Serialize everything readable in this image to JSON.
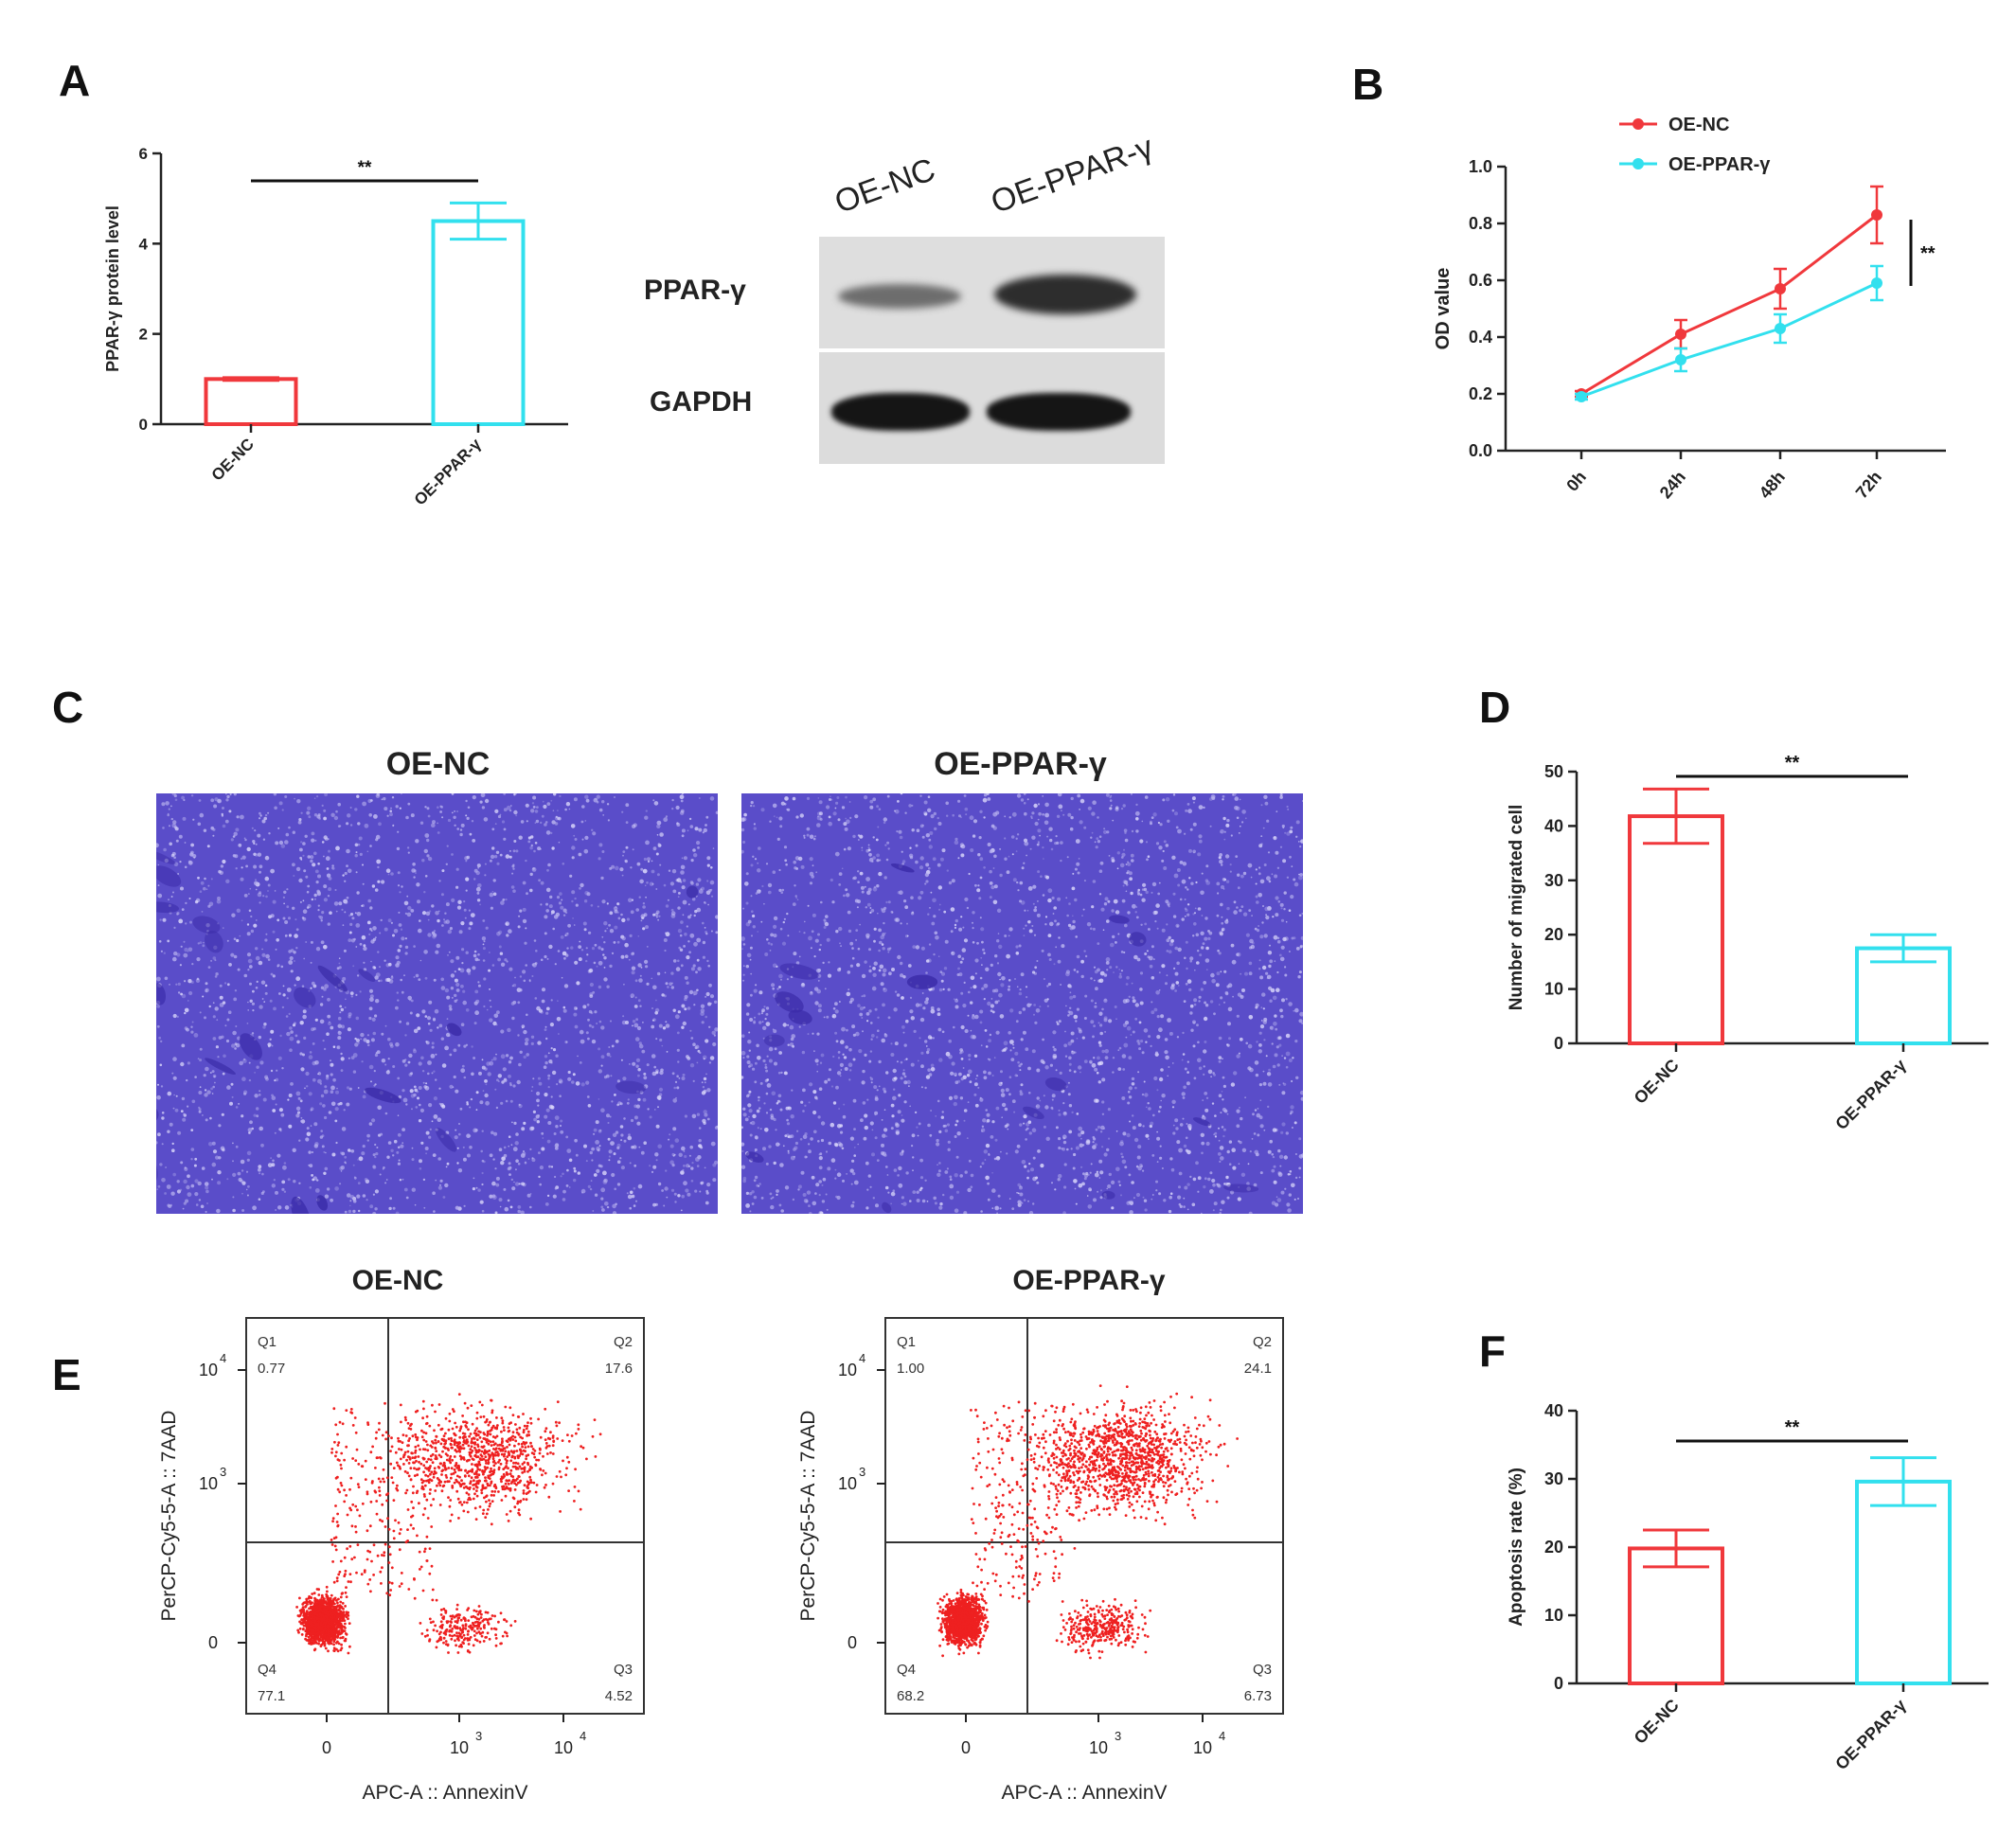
{
  "panels": {
    "A": "A",
    "B": "B",
    "C": "C",
    "D": "D",
    "E": "E",
    "F": "F"
  },
  "colors": {
    "nc": "#f0383c",
    "ppar": "#32e0ee",
    "axis": "#222222",
    "dot": "#ee2020",
    "stain": "#5a4dc9"
  },
  "blot": {
    "col_labels": [
      "OE-NC",
      "OE-PPAR-γ"
    ],
    "row_labels": [
      "PPAR-γ",
      "GAPDH"
    ]
  },
  "micrographs": {
    "titles": [
      "OE-NC",
      "OE-PPAR-γ"
    ]
  },
  "chart_data": [
    {
      "panel": "A",
      "type": "bar",
      "categories": [
        "OE-NC",
        "OE-PPAR-γ"
      ],
      "values": [
        1.0,
        4.5
      ],
      "errors": [
        0.03,
        0.4
      ],
      "ylabel": "PPAR-γ protein level",
      "ylim": [
        0,
        6
      ],
      "yticks": [
        "0",
        "2",
        "4",
        "6"
      ],
      "significance": "**"
    },
    {
      "panel": "B",
      "type": "line",
      "x": [
        "0h",
        "24h",
        "48h",
        "72h"
      ],
      "series": [
        {
          "name": "OE-NC",
          "values": [
            0.2,
            0.41,
            0.57,
            0.83
          ],
          "errors": [
            0.01,
            0.05,
            0.07,
            0.1
          ]
        },
        {
          "name": "OE-PPAR-γ",
          "values": [
            0.19,
            0.32,
            0.43,
            0.59
          ],
          "errors": [
            0.01,
            0.04,
            0.05,
            0.06
          ]
        }
      ],
      "ylabel": "OD value",
      "ylim": [
        0,
        1.0
      ],
      "yticks": [
        "0.0",
        "0.2",
        "0.4",
        "0.6",
        "0.8",
        "1.0"
      ],
      "legend": "top-left",
      "significance": "**"
    },
    {
      "panel": "D",
      "type": "bar",
      "categories": [
        "OE-NC",
        "OE-PPAR-γ"
      ],
      "values": [
        41.8,
        17.5
      ],
      "errors": [
        5,
        2.5
      ],
      "ylabel": "Number of migrated cell",
      "ylim": [
        0,
        50
      ],
      "yticks": [
        "0",
        "10",
        "20",
        "30",
        "40",
        "50"
      ],
      "significance": "**"
    },
    {
      "panel": "E",
      "type": "scatter",
      "plots": [
        {
          "title": "OE-NC",
          "quadrants": [
            {
              "name": "Q1",
              "value": "0.77"
            },
            {
              "name": "Q2",
              "value": "17.6"
            },
            {
              "name": "Q3",
              "value": "4.52"
            },
            {
              "name": "Q4",
              "value": "77.1"
            }
          ]
        },
        {
          "title": "OE-PPAR-γ",
          "quadrants": [
            {
              "name": "Q1",
              "value": "1.00"
            },
            {
              "name": "Q2",
              "value": "24.1"
            },
            {
              "name": "Q3",
              "value": "6.73"
            },
            {
              "name": "Q4",
              "value": "68.2"
            }
          ]
        }
      ],
      "xlabel": "APC-A :: AnnexinV",
      "ylabel": "PerCP-Cy5-5-A :: 7AAD",
      "xticks": [
        "0",
        "10",
        "10"
      ],
      "tick_exponents": [
        "",
        "3",
        "4"
      ],
      "yticks": [
        "0",
        "10",
        "10"
      ]
    },
    {
      "panel": "F",
      "type": "bar",
      "categories": [
        "OE-NC",
        "OE-PPAR-γ"
      ],
      "values": [
        19.8,
        29.6
      ],
      "errors": [
        2.7,
        3.5
      ],
      "ylabel": "Apoptosis rate  (%)",
      "ylim": [
        0,
        40
      ],
      "yticks": [
        "0",
        "10",
        "20",
        "30",
        "40"
      ],
      "significance": "**"
    }
  ]
}
